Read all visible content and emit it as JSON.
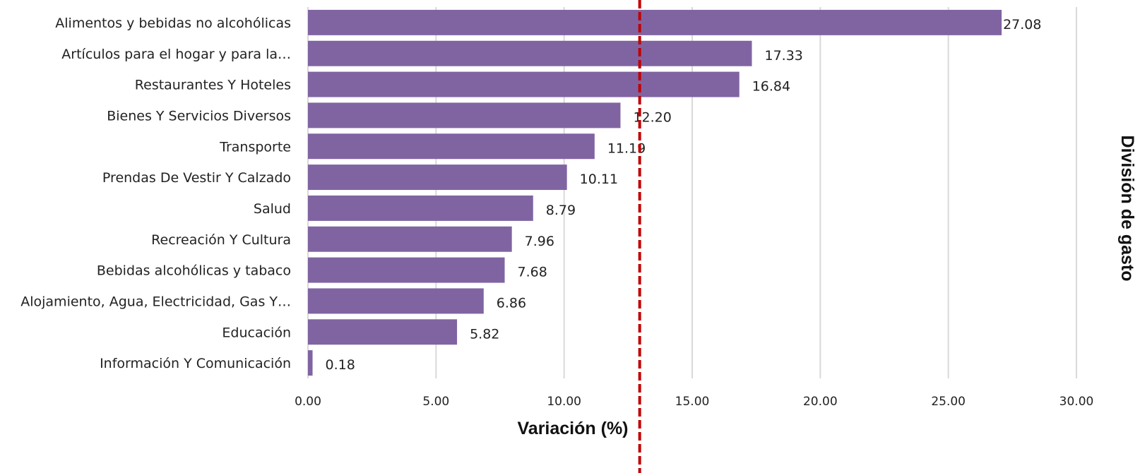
{
  "chart_data": {
    "type": "bar",
    "orientation": "horizontal",
    "categories": [
      "Alimentos y bebidas no alcohólicas",
      "Artículos para el hogar y para la…",
      "Restaurantes Y Hoteles",
      "Bienes Y Servicios Diversos",
      "Transporte",
      "Prendas De Vestir Y Calzado",
      "Salud",
      "Recreación Y Cultura",
      "Bebidas alcohólicas y tabaco",
      "Alojamiento, Agua, Electricidad, Gas Y…",
      "Educación",
      "Información Y Comunicación"
    ],
    "values": [
      27.08,
      17.33,
      16.84,
      12.2,
      11.19,
      10.11,
      8.79,
      7.96,
      7.68,
      6.86,
      5.82,
      0.18
    ],
    "value_labels": [
      "27.08",
      "17.33",
      "16.84",
      "12.20",
      "11.19",
      "10.11",
      "8.79",
      "7.96",
      "7.68",
      "6.86",
      "5.82",
      "0.18"
    ],
    "xlabel": "Variación (%)",
    "ylabel": "División de gasto",
    "xlim": [
      0,
      30
    ],
    "xticks": [
      0,
      5,
      10,
      15,
      20,
      25,
      30
    ],
    "xtick_labels": [
      "0.00",
      "5.00",
      "10.00",
      "15.00",
      "20.00",
      "25.00",
      "30.00"
    ],
    "reference_line": {
      "value": 12.95,
      "style": "dashed",
      "color": "#c00000"
    },
    "grid": "vertical",
    "bar_color": "#8064a2",
    "grid_color": "#d9d9d9"
  }
}
